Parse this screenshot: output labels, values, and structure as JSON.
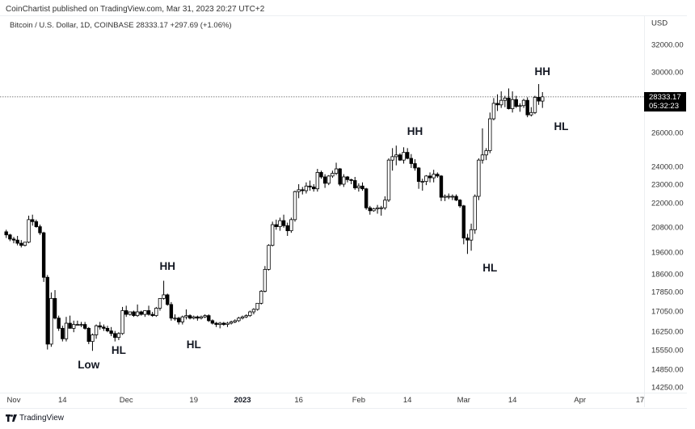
{
  "header": {
    "published": "CoinChartist published on TradingView.com, Mar 31, 2023 20:27 UTC+2",
    "legend": "Bitcoin / U.S. Dollar, 1D, COINBASE  28333.17  +297.69 (+1.06%)"
  },
  "price_axis": {
    "currency": "USD",
    "current_price": "28333.17",
    "countdown": "05:32:23"
  },
  "footer": {
    "brand": "TradingView"
  },
  "colors": {
    "up_fill": "#ffffff",
    "down_fill": "#000000",
    "outline": "#000000",
    "wick": "#000000",
    "price_line": "#555555"
  },
  "chart_data": {
    "type": "candlestick",
    "title": "Bitcoin / U.S. Dollar, 1D, COINBASE",
    "xlabel": "",
    "ylabel": "USD",
    "scale": "log",
    "ylim": [
      14000,
      33000
    ],
    "grid": false,
    "y_ticks": [
      32000,
      30000,
      26000,
      24000,
      23000,
      22000,
      20800,
      19600,
      18600,
      17850,
      17050,
      16250,
      15550,
      14850,
      14250
    ],
    "x_ticks": [
      {
        "label": "Nov",
        "day": 0
      },
      {
        "label": "14",
        "day": 13
      },
      {
        "label": "Dec",
        "day": 30
      },
      {
        "label": "19",
        "day": 48
      },
      {
        "label": "2023",
        "day": 61,
        "bold": true
      },
      {
        "label": "16",
        "day": 76
      },
      {
        "label": "Feb",
        "day": 92
      },
      {
        "label": "14",
        "day": 105
      },
      {
        "label": "Mar",
        "day": 120
      },
      {
        "label": "14",
        "day": 133
      },
      {
        "label": "Apr",
        "day": 151
      },
      {
        "label": "17",
        "day": 167
      }
    ],
    "current_price": 28333.17,
    "change": 297.69,
    "change_pct": 1.06,
    "ohlc_start_day": -2,
    "ohlc": [
      [
        20600,
        20700,
        20300,
        20450
      ],
      [
        20450,
        20500,
        20150,
        20250
      ],
      [
        20250,
        20350,
        20050,
        20200
      ],
      [
        20200,
        20400,
        19950,
        20050
      ],
      [
        20050,
        20200,
        19850,
        19950
      ],
      [
        19950,
        20100,
        19900,
        20100
      ],
      [
        20100,
        21400,
        20050,
        21200
      ],
      [
        21200,
        21450,
        20900,
        21100
      ],
      [
        21100,
        21200,
        20800,
        20850
      ],
      [
        20850,
        20950,
        20450,
        20550
      ],
      [
        20550,
        20600,
        18300,
        18500
      ],
      [
        18500,
        18600,
        15600,
        15800
      ],
      [
        15800,
        17850,
        15700,
        17600
      ],
      [
        17600,
        17950,
        16750,
        16800
      ],
      [
        16800,
        16900,
        16300,
        16400
      ],
      [
        16400,
        16500,
        15900,
        16000
      ],
      [
        16000,
        16850,
        15900,
        16600
      ],
      [
        16600,
        16900,
        16500,
        16400
      ],
      [
        16400,
        16700,
        16250,
        16550
      ],
      [
        16550,
        16700,
        16500,
        16550
      ],
      [
        16550,
        16650,
        16450,
        16550
      ],
      [
        16550,
        16650,
        16350,
        16400
      ],
      [
        16400,
        16450,
        15800,
        15900
      ],
      [
        15900,
        16200,
        15550,
        16150
      ],
      [
        16150,
        16550,
        16000,
        16500
      ],
      [
        16500,
        16650,
        16350,
        16450
      ],
      [
        16450,
        16550,
        16300,
        16400
      ],
      [
        16400,
        16500,
        16250,
        16300
      ],
      [
        16300,
        16450,
        16100,
        16200
      ],
      [
        16200,
        16300,
        15900,
        16050
      ],
      [
        16050,
        16250,
        15950,
        16200
      ],
      [
        16200,
        17250,
        16150,
        17100
      ],
      [
        17100,
        17300,
        16850,
        16950
      ],
      [
        16950,
        17050,
        16900,
        17050
      ],
      [
        17050,
        17100,
        16850,
        16900
      ],
      [
        16900,
        17350,
        16850,
        17050
      ],
      [
        17050,
        17100,
        16900,
        16950
      ],
      [
        16950,
        17100,
        16850,
        17100
      ],
      [
        17100,
        17300,
        16900,
        16950
      ],
      [
        16950,
        17050,
        16850,
        16900
      ],
      [
        16900,
        17250,
        16850,
        17200
      ],
      [
        17200,
        17550,
        17100,
        17600
      ],
      [
        17600,
        18350,
        17550,
        17750
      ],
      [
        17750,
        17800,
        17300,
        17350
      ],
      [
        17350,
        17450,
        16700,
        16800
      ],
      [
        16800,
        16950,
        16700,
        16800
      ],
      [
        16800,
        16850,
        16550,
        16650
      ],
      [
        16650,
        16900,
        16550,
        16850
      ],
      [
        16850,
        17150,
        16750,
        16900
      ],
      [
        16900,
        16950,
        16750,
        16800
      ],
      [
        16800,
        16900,
        16750,
        16850
      ],
      [
        16850,
        16900,
        16700,
        16800
      ],
      [
        16800,
        16900,
        16750,
        16850
      ],
      [
        16850,
        16950,
        16800,
        16900
      ],
      [
        16900,
        16950,
        16650,
        16700
      ],
      [
        16700,
        16750,
        16550,
        16600
      ],
      [
        16600,
        16650,
        16450,
        16550
      ],
      [
        16550,
        16650,
        16400,
        16600
      ],
      [
        16600,
        16650,
        16500,
        16550
      ],
      [
        16550,
        16650,
        16450,
        16600
      ],
      [
        16600,
        16700,
        16550,
        16650
      ],
      [
        16650,
        16750,
        16600,
        16700
      ],
      [
        16700,
        16850,
        16650,
        16800
      ],
      [
        16800,
        16900,
        16750,
        16850
      ],
      [
        16850,
        16950,
        16800,
        16900
      ],
      [
        16900,
        17100,
        16850,
        17050
      ],
      [
        17050,
        17200,
        16950,
        17150
      ],
      [
        17150,
        17400,
        17100,
        17400
      ],
      [
        17400,
        17950,
        17350,
        17900
      ],
      [
        17900,
        19000,
        17850,
        18850
      ],
      [
        18850,
        20000,
        18800,
        19950
      ],
      [
        19950,
        21100,
        19900,
        20950
      ],
      [
        20950,
        21200,
        20700,
        20850
      ],
      [
        20850,
        21300,
        20650,
        21150
      ],
      [
        21150,
        21450,
        20800,
        20900
      ],
      [
        20900,
        21050,
        20400,
        20650
      ],
      [
        20650,
        21300,
        20550,
        21200
      ],
      [
        21200,
        22700,
        21100,
        22650
      ],
      [
        22650,
        23050,
        22300,
        22750
      ],
      [
        22750,
        22900,
        22500,
        22700
      ],
      [
        22700,
        23150,
        22550,
        22950
      ],
      [
        22950,
        23250,
        22700,
        22900
      ],
      [
        22900,
        23050,
        22650,
        22800
      ],
      [
        22800,
        23900,
        22650,
        23700
      ],
      [
        23700,
        23800,
        23350,
        23450
      ],
      [
        23450,
        23600,
        22850,
        23100
      ],
      [
        23100,
        23550,
        23000,
        23500
      ],
      [
        23500,
        23800,
        23400,
        23650
      ],
      [
        23650,
        24250,
        23550,
        23900
      ],
      [
        23900,
        23950,
        22950,
        23050
      ],
      [
        23050,
        23600,
        22900,
        23450
      ],
      [
        23450,
        23500,
        23150,
        23300
      ],
      [
        23300,
        23350,
        23050,
        23250
      ],
      [
        23250,
        23450,
        22750,
        22850
      ],
      [
        22850,
        23100,
        22650,
        22950
      ],
      [
        22950,
        23150,
        22700,
        22800
      ],
      [
        22800,
        22850,
        21700,
        21800
      ],
      [
        21800,
        21900,
        21450,
        21650
      ],
      [
        21650,
        21800,
        21600,
        21750
      ],
      [
        21750,
        21950,
        21500,
        21800
      ],
      [
        21800,
        21900,
        21400,
        21800
      ],
      [
        21800,
        22400,
        21700,
        22200
      ],
      [
        22200,
        24500,
        22100,
        24400
      ],
      [
        24400,
        25100,
        23800,
        24600
      ],
      [
        24600,
        25250,
        24100,
        24700
      ],
      [
        24700,
        24800,
        24350,
        24400
      ],
      [
        24400,
        25150,
        24200,
        24850
      ],
      [
        24850,
        25100,
        24450,
        24500
      ],
      [
        24500,
        24750,
        23950,
        24200
      ],
      [
        24200,
        24450,
        23800,
        23950
      ],
      [
        23950,
        24000,
        22800,
        23200
      ],
      [
        23200,
        23350,
        22700,
        23200
      ],
      [
        23200,
        23550,
        23000,
        23500
      ],
      [
        23500,
        23700,
        23150,
        23400
      ],
      [
        23400,
        23850,
        23150,
        23600
      ],
      [
        23600,
        23700,
        23400,
        23500
      ],
      [
        23500,
        23550,
        22150,
        22350
      ],
      [
        22350,
        22500,
        22150,
        22400
      ],
      [
        22400,
        22550,
        22250,
        22400
      ],
      [
        22400,
        22500,
        22200,
        22400
      ],
      [
        22400,
        22500,
        22150,
        22200
      ],
      [
        22200,
        22250,
        21800,
        21900
      ],
      [
        21900,
        21950,
        20000,
        20300
      ],
      [
        20300,
        20500,
        19550,
        20200
      ],
      [
        20200,
        21000,
        19700,
        20700
      ],
      [
        20700,
        22500,
        20500,
        22400
      ],
      [
        22400,
        24500,
        22200,
        24400
      ],
      [
        24400,
        26300,
        24200,
        24700
      ],
      [
        24700,
        25100,
        24400,
        24950
      ],
      [
        24950,
        27300,
        24800,
        26900
      ],
      [
        26900,
        28250,
        26800,
        27900
      ],
      [
        27900,
        28500,
        27400,
        27800
      ],
      [
        27800,
        28700,
        27600,
        28100
      ],
      [
        28100,
        28400,
        27650,
        28250
      ],
      [
        28250,
        28900,
        27500,
        27550
      ],
      [
        27550,
        28700,
        27300,
        28150
      ],
      [
        28150,
        28400,
        27600,
        27700
      ],
      [
        27700,
        27900,
        27350,
        27750
      ],
      [
        27750,
        28200,
        27600,
        28100
      ],
      [
        28100,
        28300,
        27000,
        27150
      ],
      [
        27150,
        27650,
        27050,
        27300
      ],
      [
        27300,
        28400,
        27200,
        28300
      ],
      [
        28300,
        29200,
        27800,
        28050
      ],
      [
        28050,
        28650,
        27600,
        28333
      ]
    ],
    "annotations": [
      {
        "label": "Low",
        "day": 20,
        "price": 15250,
        "position": "below"
      },
      {
        "label": "HL",
        "day": 28,
        "price": 15800,
        "position": "below"
      },
      {
        "label": "HH",
        "day": 41,
        "price": 18700,
        "position": "above"
      },
      {
        "label": "HL",
        "day": 48,
        "price": 16000,
        "position": "below"
      },
      {
        "label": "HH",
        "day": 107,
        "price": 25700,
        "position": "above"
      },
      {
        "label": "HL",
        "day": 127,
        "price": 19200,
        "position": "below"
      },
      {
        "label": "HH",
        "day": 141,
        "price": 29600,
        "position": "above"
      },
      {
        "label": "HL",
        "day": 146,
        "price": 26800,
        "position": "below"
      }
    ]
  }
}
